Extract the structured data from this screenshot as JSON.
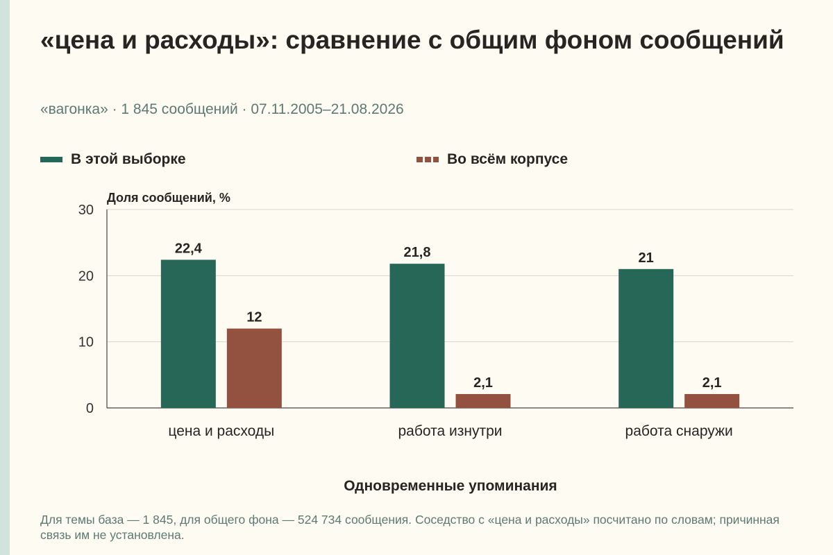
{
  "title": "«цена и расходы»: сравнение с общим фоном сообщений",
  "subtitle": "«вагонка» · 1 845 сообщений · 07.11.2005–21.08.2026",
  "legend": [
    {
      "label": "В этой выборке",
      "color": "#276757",
      "style": "solid"
    },
    {
      "label": "Во всём корпусе",
      "color": "#93513f",
      "style": "dashed"
    }
  ],
  "footnote": "Для темы база — 1 845, для общего фона — 524 734 сообщения. Соседство с «цена и расходы» посчитано по словам; причинная связь им не установлена.",
  "chart_data": {
    "type": "bar",
    "title": "«цена и расходы»: сравнение с общим фоном сообщений",
    "xlabel": "Одновременные упоминания",
    "ylabel": "Доля сообщений, %",
    "categories": [
      "цена и расходы",
      "работа изнутри",
      "работа снаружи"
    ],
    "series": [
      {
        "name": "В этой выборке",
        "values": [
          22.4,
          21.8,
          21
        ],
        "labels": [
          "22,4",
          "21,8",
          "21"
        ],
        "color": "#276757"
      },
      {
        "name": "Во всём корпусе",
        "values": [
          12,
          2.1,
          2.1
        ],
        "labels": [
          "12",
          "2,1",
          "2,1"
        ],
        "color": "#93513f"
      }
    ],
    "ylim": [
      0,
      30
    ],
    "yticks": [
      0,
      10,
      20,
      30
    ],
    "grid": true,
    "legend_position": "top"
  }
}
